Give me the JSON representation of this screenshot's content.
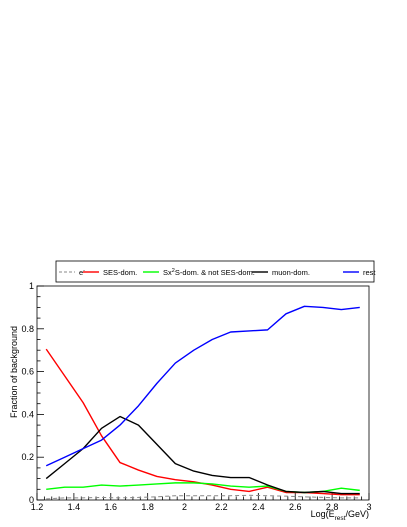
{
  "chart_data": {
    "type": "line",
    "xlabel": "Log(E",
    "xlabel_sub": "rest",
    "xlabel_tail": "/GeV)",
    "ylabel": "Fraction of background",
    "xlim": [
      1.2,
      3.0
    ],
    "ylim": [
      0,
      1.0
    ],
    "xticks": [
      "1.2",
      "1.4",
      "1.6",
      "1.8",
      "2",
      "2.2",
      "2.4",
      "2.6",
      "2.8",
      "3"
    ],
    "yticks": [
      "0",
      "0.2",
      "0.4",
      "0.6",
      "0.8",
      "1"
    ],
    "grid": false,
    "legend_placement": "top",
    "series": [
      {
        "name": "e",
        "name_sup": "-",
        "color": "#888888",
        "dash": true,
        "x": [
          1.25,
          1.35,
          1.45,
          1.55,
          1.65,
          1.75,
          1.85,
          1.95,
          2.05,
          2.15,
          2.25,
          2.35,
          2.45,
          2.55,
          2.65,
          2.75,
          2.85,
          2.95
        ],
        "values": [
          0.005,
          0.01,
          0.01,
          0.012,
          0.01,
          0.012,
          0.015,
          0.02,
          0.02,
          0.02,
          0.02,
          0.022,
          0.02,
          0.018,
          0.015,
          0.012,
          0.01,
          0.01
        ]
      },
      {
        "name": "SES-dom.",
        "color": "#ff0000",
        "dash": false,
        "x": [
          1.25,
          1.35,
          1.45,
          1.55,
          1.65,
          1.75,
          1.85,
          1.95,
          2.05,
          2.15,
          2.25,
          2.35,
          2.45,
          2.55,
          2.65,
          2.75,
          2.85,
          2.95
        ],
        "values": [
          0.705,
          0.58,
          0.455,
          0.3,
          0.175,
          0.14,
          0.11,
          0.095,
          0.085,
          0.07,
          0.05,
          0.04,
          0.06,
          0.035,
          0.035,
          0.03,
          0.025,
          0.025
        ]
      },
      {
        "name": "Sx",
        "name_sup": "2",
        "name_tail": "S-dom. & not SES-dom.",
        "color": "#00ff00",
        "dash": false,
        "x": [
          1.25,
          1.35,
          1.45,
          1.55,
          1.65,
          1.75,
          1.85,
          1.95,
          2.05,
          2.15,
          2.25,
          2.35,
          2.45,
          2.55,
          2.65,
          2.75,
          2.85,
          2.95
        ],
        "values": [
          0.05,
          0.06,
          0.06,
          0.07,
          0.065,
          0.07,
          0.075,
          0.08,
          0.08,
          0.075,
          0.065,
          0.06,
          0.065,
          0.04,
          0.035,
          0.04,
          0.055,
          0.045
        ]
      },
      {
        "name": "muon-dom.",
        "color": "#000000",
        "dash": false,
        "x": [
          1.25,
          1.35,
          1.45,
          1.55,
          1.65,
          1.75,
          1.85,
          1.95,
          2.05,
          2.15,
          2.25,
          2.35,
          2.45,
          2.55,
          2.65,
          2.75,
          2.85,
          2.95
        ],
        "values": [
          0.1,
          0.17,
          0.24,
          0.335,
          0.39,
          0.35,
          0.26,
          0.17,
          0.135,
          0.115,
          0.105,
          0.105,
          0.07,
          0.04,
          0.035,
          0.04,
          0.03,
          0.03
        ]
      },
      {
        "name": "rest",
        "color": "#0000ff",
        "dash": false,
        "x": [
          1.25,
          1.35,
          1.45,
          1.55,
          1.65,
          1.75,
          1.85,
          1.95,
          2.05,
          2.15,
          2.25,
          2.35,
          2.45,
          2.55,
          2.65,
          2.75,
          2.85,
          2.95
        ],
        "values": [
          0.16,
          0.2,
          0.24,
          0.28,
          0.35,
          0.44,
          0.545,
          0.64,
          0.7,
          0.75,
          0.785,
          0.79,
          0.795,
          0.87,
          0.905,
          0.9,
          0.89,
          0.9
        ]
      }
    ]
  }
}
